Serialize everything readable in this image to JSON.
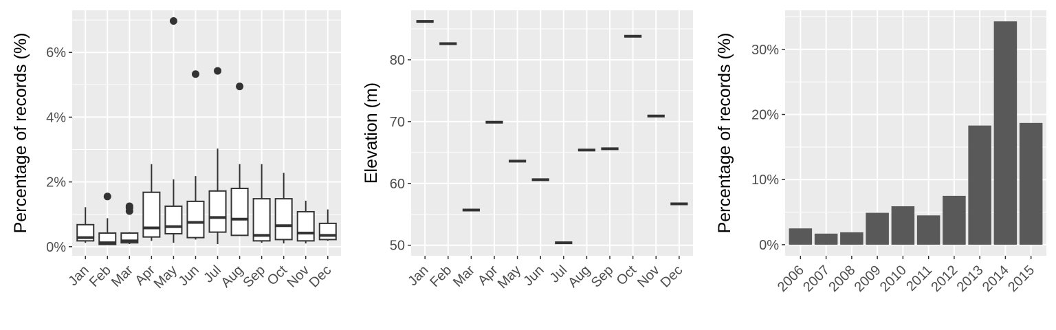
{
  "chart_data": [
    {
      "type": "box",
      "ylabel": "Percentage of records (%)",
      "xlabel": "",
      "categories": [
        "Jan",
        "Feb",
        "Mar",
        "Apr",
        "May",
        "Jun",
        "Jul",
        "Aug",
        "Sep",
        "Oct",
        "Nov",
        "Dec"
      ],
      "ylim": [
        -0.28,
        7.3
      ],
      "yticks": [
        0,
        2,
        4,
        6
      ],
      "ytick_labels": [
        "0%",
        "2%",
        "4%",
        "6%"
      ],
      "grid": true,
      "boxes": [
        {
          "category": "Jan",
          "min": 0.12,
          "q1": 0.18,
          "median": 0.28,
          "q3": 0.68,
          "max": 1.22,
          "outliers": []
        },
        {
          "category": "Feb",
          "min": 0.05,
          "q1": 0.07,
          "median": 0.12,
          "q3": 0.42,
          "max": 0.88,
          "outliers": [
            1.55
          ]
        },
        {
          "category": "Mar",
          "min": 0.08,
          "q1": 0.12,
          "median": 0.18,
          "q3": 0.42,
          "max": 0.45,
          "outliers": [
            1.1,
            1.2,
            1.25
          ]
        },
        {
          "category": "Apr",
          "min": 0.18,
          "q1": 0.3,
          "median": 0.58,
          "q3": 1.68,
          "max": 2.55,
          "outliers": []
        },
        {
          "category": "May",
          "min": 0.12,
          "q1": 0.4,
          "median": 0.62,
          "q3": 1.25,
          "max": 2.08,
          "outliers": [
            6.97
          ]
        },
        {
          "category": "Jun",
          "min": 0.22,
          "q1": 0.28,
          "median": 0.75,
          "q3": 1.4,
          "max": 2.18,
          "outliers": [
            5.33
          ]
        },
        {
          "category": "Jul",
          "min": 0.08,
          "q1": 0.45,
          "median": 0.9,
          "q3": 1.72,
          "max": 3.03,
          "outliers": [
            5.43
          ]
        },
        {
          "category": "Aug",
          "min": 0.35,
          "q1": 0.35,
          "median": 0.85,
          "q3": 1.8,
          "max": 2.55,
          "outliers": [
            4.95
          ]
        },
        {
          "category": "Sep",
          "min": 0.12,
          "q1": 0.18,
          "median": 0.35,
          "q3": 1.48,
          "max": 2.55,
          "outliers": []
        },
        {
          "category": "Oct",
          "min": 0.1,
          "q1": 0.22,
          "median": 0.65,
          "q3": 1.48,
          "max": 2.28,
          "outliers": []
        },
        {
          "category": "Nov",
          "min": 0.1,
          "q1": 0.18,
          "median": 0.42,
          "q3": 1.08,
          "max": 1.42,
          "outliers": []
        },
        {
          "category": "Dec",
          "min": 0.18,
          "q1": 0.22,
          "median": 0.35,
          "q3": 0.72,
          "max": 1.15,
          "outliers": []
        }
      ]
    },
    {
      "type": "box",
      "ylabel": "Elevation (m)",
      "xlabel": "",
      "categories": [
        "Jan",
        "Feb",
        "Mar",
        "Apr",
        "May",
        "Jun",
        "Jul",
        "Aug",
        "Sep",
        "Oct",
        "Nov",
        "Dec"
      ],
      "ylim": [
        48.3,
        88.0
      ],
      "yticks": [
        50,
        60,
        70,
        80
      ],
      "ytick_labels": [
        "50",
        "60",
        "70",
        "80"
      ],
      "grid": true,
      "values": [
        86.2,
        82.6,
        55.7,
        69.9,
        63.6,
        60.6,
        50.4,
        65.4,
        65.6,
        83.8,
        70.9,
        56.7
      ]
    },
    {
      "type": "bar",
      "ylabel": "Percentage of records (%)",
      "xlabel": "",
      "categories": [
        "2006",
        "2007",
        "2008",
        "2009",
        "2010",
        "2011",
        "2012",
        "2013",
        "2014",
        "2015"
      ],
      "values": [
        2.5,
        1.7,
        1.9,
        4.9,
        5.9,
        4.5,
        7.5,
        18.3,
        34.3,
        18.7
      ],
      "ylim": [
        -1.7,
        36.0
      ],
      "yticks": [
        0,
        10,
        20,
        30
      ],
      "ytick_labels": [
        "0%",
        "10%",
        "20%",
        "30%"
      ],
      "grid": true,
      "bar_color": "#595959"
    }
  ]
}
